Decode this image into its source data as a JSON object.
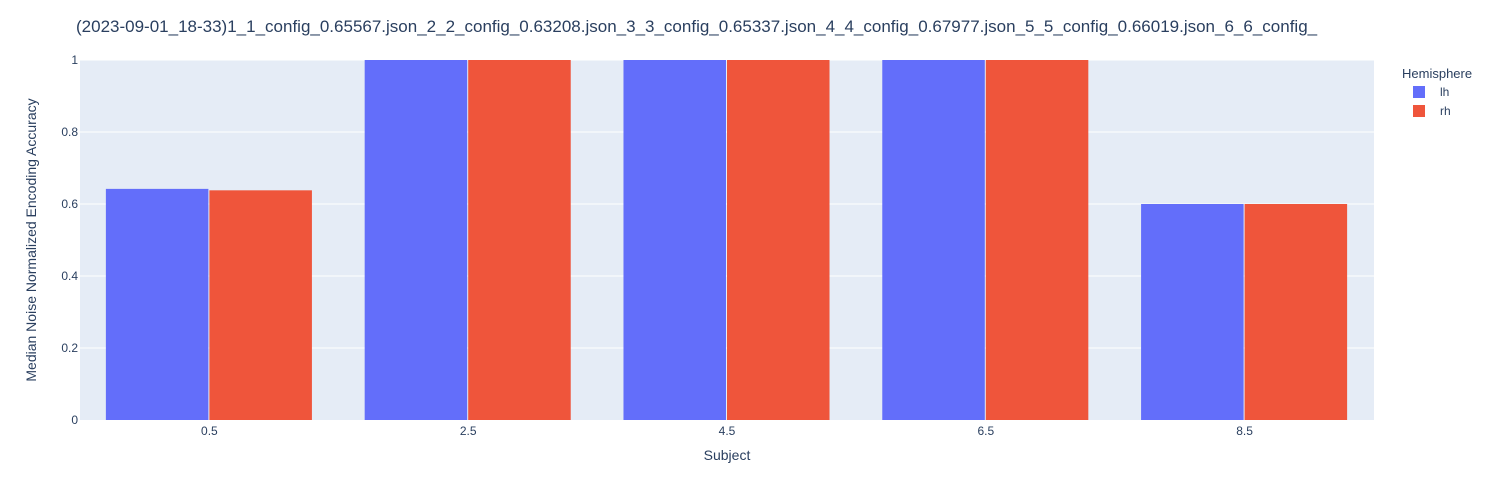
{
  "chart_data": {
    "type": "bar",
    "title": "(2023-09-01_18-33)1_1_config_0.65567.json_2_2_config_0.63208.json_3_3_config_0.65337.json_4_4_config_0.67977.json_5_5_config_0.66019.json_6_6_config_",
    "xlabel": "Subject",
    "ylabel": "Median Noise Normalized Encoding Accuracy",
    "categories": [
      "0.5",
      "2.5",
      "4.5",
      "6.5",
      "8.5"
    ],
    "series": [
      {
        "name": "lh",
        "color": "#636efa",
        "values": [
          0.642,
          1.0,
          1.0,
          1.0,
          0.6
        ]
      },
      {
        "name": "rh",
        "color": "#ef553b",
        "values": [
          0.638,
          1.0,
          1.0,
          1.0,
          0.6
        ]
      }
    ],
    "ylim": [
      0,
      1
    ],
    "yticks": [
      0,
      0.2,
      0.4,
      0.6,
      0.8,
      1
    ],
    "ytick_labels": [
      "0",
      "0.2",
      "0.4",
      "0.6",
      "0.8",
      "1"
    ],
    "grid": true,
    "legend": {
      "title": "Hemisphere",
      "position": "top-right"
    },
    "plot_bgcolor": "#e5ecf6"
  }
}
